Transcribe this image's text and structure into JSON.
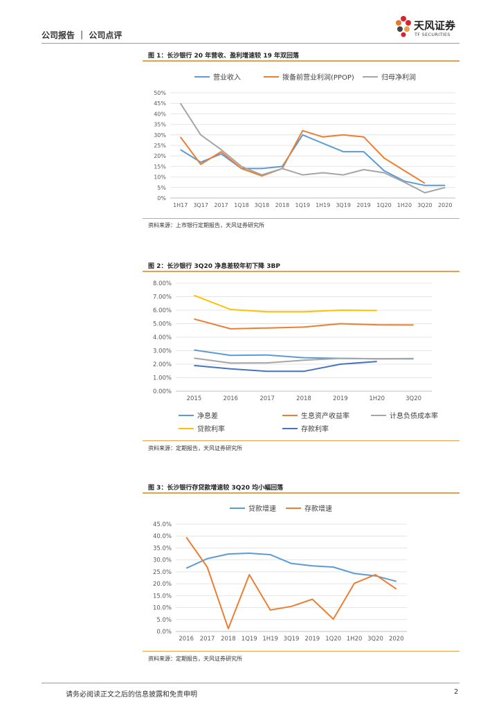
{
  "header": {
    "label": "公司报告 ｜ 公司点评"
  },
  "logo": {
    "name": "天风证券",
    "sub": "TF SECURITIES"
  },
  "colors": {
    "blue": "#5b9bd5",
    "orange": "#ed7d31",
    "gray": "#a5a5a5",
    "yellow": "#ffc000",
    "navy": "#4472c4",
    "rule": "#e8a04c"
  },
  "figures": [
    {
      "title": "图 1：长沙银行 20 年营收、盈利增速较 19 年双回落",
      "source": "资料来源：上市银行定期报告，天风证券研究所"
    },
    {
      "title": "图 2：长沙银行 3Q20 净息差较年初下降 3BP",
      "source": "资料来源：定期报告，天风证券研究所"
    },
    {
      "title": "图 3：长沙银行存贷款增速较 3Q20 均小幅回落",
      "source": "资料来源：定期报告，天风证券研究所"
    }
  ],
  "chart_data": [
    {
      "type": "line",
      "title": "图 1：长沙银行 20 年营收、盈利增速较 19 年双回落",
      "categories": [
        "1H17",
        "3Q17",
        "2017",
        "1Q18",
        "3Q18",
        "2018",
        "1Q19",
        "1H19",
        "3Q19",
        "2019",
        "1Q20",
        "1H20",
        "3Q20",
        "2020"
      ],
      "yticks": [
        "0%",
        "5%",
        "10%",
        "15%",
        "20%",
        "25%",
        "30%",
        "35%",
        "40%",
        "45%",
        "50%"
      ],
      "ylim": [
        0,
        50
      ],
      "legend_position": "top",
      "series": [
        {
          "name": "营业收入",
          "color": "#5b9bd5",
          "values": [
            23,
            17,
            21,
            14,
            14,
            15,
            30,
            26,
            22,
            22,
            13,
            8,
            6,
            6
          ]
        },
        {
          "name": "拨备前营业利润(PPOP)",
          "color": "#ed7d31",
          "values": [
            29,
            16,
            22,
            14,
            10.5,
            14,
            32,
            29,
            30,
            29,
            19,
            13,
            7,
            null
          ]
        },
        {
          "name": "归母净利润",
          "color": "#a5a5a5",
          "values": [
            45,
            30,
            23,
            15,
            11,
            14,
            11,
            12,
            11,
            13.5,
            12,
            7.5,
            2.5,
            5
          ]
        }
      ]
    },
    {
      "type": "line",
      "title": "图 2：长沙银行 3Q20 净息差较年初下降 3BP",
      "categories": [
        "2015",
        "2016",
        "2017",
        "2018",
        "2019",
        "1H20",
        "3Q20"
      ],
      "yticks": [
        "0.00%",
        "1.00%",
        "2.00%",
        "3.00%",
        "4.00%",
        "5.00%",
        "6.00%",
        "7.00%",
        "8.00%"
      ],
      "ylim": [
        0,
        8
      ],
      "legend_position": "bottom",
      "series": [
        {
          "name": "净息差",
          "color": "#5b9bd5",
          "values": [
            3.05,
            2.65,
            2.68,
            2.48,
            2.43,
            2.4,
            2.4
          ]
        },
        {
          "name": "生息资产收益率",
          "color": "#ed7d31",
          "values": [
            5.35,
            4.62,
            4.68,
            4.75,
            5.0,
            4.92,
            4.9
          ]
        },
        {
          "name": "计息负债成本率",
          "color": "#a5a5a5",
          "values": [
            2.45,
            2.08,
            2.1,
            2.3,
            2.43,
            2.4,
            2.42
          ]
        },
        {
          "name": "贷款利率",
          "color": "#ffc000",
          "values": [
            7.1,
            6.05,
            5.88,
            5.88,
            6.0,
            5.98,
            null
          ]
        },
        {
          "name": "存款利率",
          "color": "#4472c4",
          "values": [
            1.9,
            1.65,
            1.47,
            1.47,
            2.0,
            2.2,
            null
          ]
        }
      ]
    },
    {
      "type": "line",
      "title": "图 3：长沙银行存贷款增速较 3Q20 均小幅回落",
      "categories": [
        "2016",
        "2017",
        "2018",
        "1Q19",
        "1H19",
        "3Q19",
        "2019",
        "1Q20",
        "1H20",
        "3Q20",
        "2020"
      ],
      "yticks": [
        "0.0%",
        "5.0%",
        "10.0%",
        "15.0%",
        "20.0%",
        "25.0%",
        "30.0%",
        "35.0%",
        "40.0%",
        "45.0%"
      ],
      "ylim": [
        0,
        45
      ],
      "legend_position": "top",
      "series": [
        {
          "name": "贷款增速",
          "color": "#5b9bd5",
          "values": [
            26.5,
            30.5,
            32.5,
            32.8,
            32.2,
            28.5,
            27.5,
            27,
            24.3,
            23.3,
            21
          ]
        },
        {
          "name": "存款增速",
          "color": "#ed7d31",
          "values": [
            39.5,
            27,
            1.2,
            23.8,
            9,
            10.5,
            13.5,
            5.2,
            20.2,
            23.8,
            17.8
          ]
        }
      ]
    }
  ],
  "footer": {
    "disclaimer": "请务必阅读正文之后的信息披露和免责申明",
    "page": "2"
  }
}
